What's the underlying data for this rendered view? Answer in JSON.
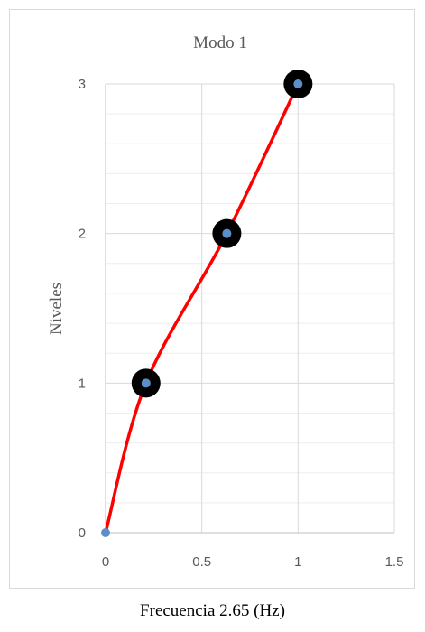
{
  "chart_data": {
    "type": "scatter",
    "title": "Modo 1",
    "ylabel": "Niveles",
    "xlabel": "Frecuencia 2.65 (Hz)",
    "xlim": [
      0,
      1.5
    ],
    "ylim": [
      0,
      3
    ],
    "x_ticks": [
      "0",
      "0.5",
      "1",
      "1.5"
    ],
    "y_ticks": [
      "0",
      "1",
      "2",
      "3"
    ],
    "grid": true,
    "series": [
      {
        "x": [
          0,
          0.21,
          0.63,
          1.0
        ],
        "y": [
          0,
          1,
          2,
          3
        ],
        "marker_color": "#5b8fc9",
        "line_color": "#ff0000",
        "smooth": true
      }
    ],
    "highlight_points": {
      "x": [
        0.21,
        0.63,
        1.0
      ],
      "y": [
        1,
        2,
        3
      ],
      "color": "#000000"
    }
  }
}
